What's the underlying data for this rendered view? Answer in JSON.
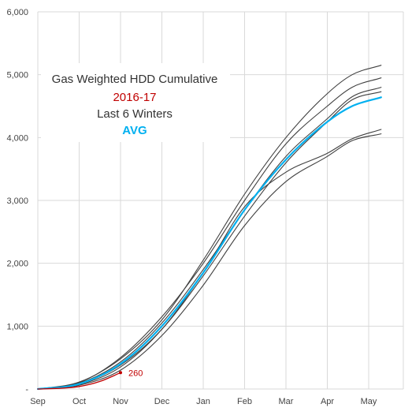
{
  "chart_data": {
    "type": "line",
    "title": "",
    "xlabel": "",
    "ylabel": "",
    "x_categories": [
      "Sep",
      "Oct",
      "Nov",
      "Dec",
      "Jan",
      "Feb",
      "Mar",
      "Apr",
      "May"
    ],
    "ylim": [
      0,
      6000
    ],
    "yticks": [
      0,
      1000,
      2000,
      3000,
      4000,
      5000,
      6000
    ],
    "ytick_labels": [
      "-",
      "1,000",
      "2,000",
      "3,000",
      "4,000",
      "5,000",
      "6,000"
    ],
    "grid": "vertical and horizontal",
    "legend_title": "Gas Weighted HDD Cumulative",
    "legend_entries": [
      {
        "label": "2016-17",
        "color": "#c00000"
      },
      {
        "label": "Last 6 Winters",
        "color": "#404040"
      },
      {
        "label": "AVG",
        "color": "#00b0f0"
      }
    ],
    "annotation": {
      "text": "260",
      "color": "#c00000"
    },
    "series": [
      {
        "role": "winter",
        "color": "#404040",
        "points": [
          [
            0,
            0
          ],
          [
            1,
            100
          ],
          [
            2,
            500
          ],
          [
            3,
            1150
          ],
          [
            4,
            2000
          ],
          [
            5,
            3000
          ],
          [
            6,
            3900
          ],
          [
            7,
            4500
          ],
          [
            7.6,
            4800
          ],
          [
            8.3,
            4950
          ]
        ]
      },
      {
        "role": "winter",
        "color": "#404040",
        "points": [
          [
            0,
            0
          ],
          [
            1,
            90
          ],
          [
            2,
            430
          ],
          [
            3,
            1050
          ],
          [
            4,
            1900
          ],
          [
            5,
            2850
          ],
          [
            6,
            3700
          ],
          [
            7,
            4300
          ],
          [
            7.6,
            4650
          ],
          [
            8.3,
            4800
          ]
        ]
      },
      {
        "role": "winter",
        "color": "#404040",
        "points": [
          [
            0,
            0
          ],
          [
            1,
            80
          ],
          [
            2,
            380
          ],
          [
            3,
            950
          ],
          [
            4,
            1800
          ],
          [
            5,
            2750
          ],
          [
            6,
            3600
          ],
          [
            7,
            4250
          ],
          [
            7.6,
            4600
          ],
          [
            8.3,
            4730
          ]
        ]
      },
      {
        "role": "winter",
        "color": "#404040",
        "points": [
          [
            0,
            0
          ],
          [
            1,
            110
          ],
          [
            2,
            480
          ],
          [
            3,
            1100
          ],
          [
            4,
            2050
          ],
          [
            5,
            3100
          ],
          [
            6,
            4000
          ],
          [
            7,
            4700
          ],
          [
            7.6,
            5000
          ],
          [
            8.3,
            5150
          ]
        ]
      },
      {
        "role": "winter",
        "color": "#404040",
        "points": [
          [
            0,
            0
          ],
          [
            1,
            70
          ],
          [
            2,
            350
          ],
          [
            3,
            950
          ],
          [
            4,
            1850
          ],
          [
            5,
            2900
          ],
          [
            6,
            3450
          ],
          [
            7,
            3750
          ],
          [
            7.6,
            3980
          ],
          [
            8.3,
            4130
          ]
        ]
      },
      {
        "role": "winter",
        "color": "#404040",
        "points": [
          [
            0,
            0
          ],
          [
            1,
            60
          ],
          [
            2,
            300
          ],
          [
            3,
            850
          ],
          [
            4,
            1650
          ],
          [
            5,
            2600
          ],
          [
            6,
            3300
          ],
          [
            7,
            3700
          ],
          [
            7.6,
            3950
          ],
          [
            8.3,
            4060
          ]
        ]
      },
      {
        "role": "average",
        "color": "#00b0f0",
        "points": [
          [
            0,
            0
          ],
          [
            1,
            80
          ],
          [
            2,
            400
          ],
          [
            3,
            1000
          ],
          [
            4,
            1850
          ],
          [
            5,
            2850
          ],
          [
            6,
            3650
          ],
          [
            7,
            4250
          ],
          [
            7.6,
            4500
          ],
          [
            8.3,
            4640
          ]
        ]
      },
      {
        "role": "current",
        "color": "#c00000",
        "points": [
          [
            0,
            0
          ],
          [
            0.5,
            10
          ],
          [
            1,
            40
          ],
          [
            1.5,
            120
          ],
          [
            2,
            260
          ]
        ]
      }
    ]
  }
}
